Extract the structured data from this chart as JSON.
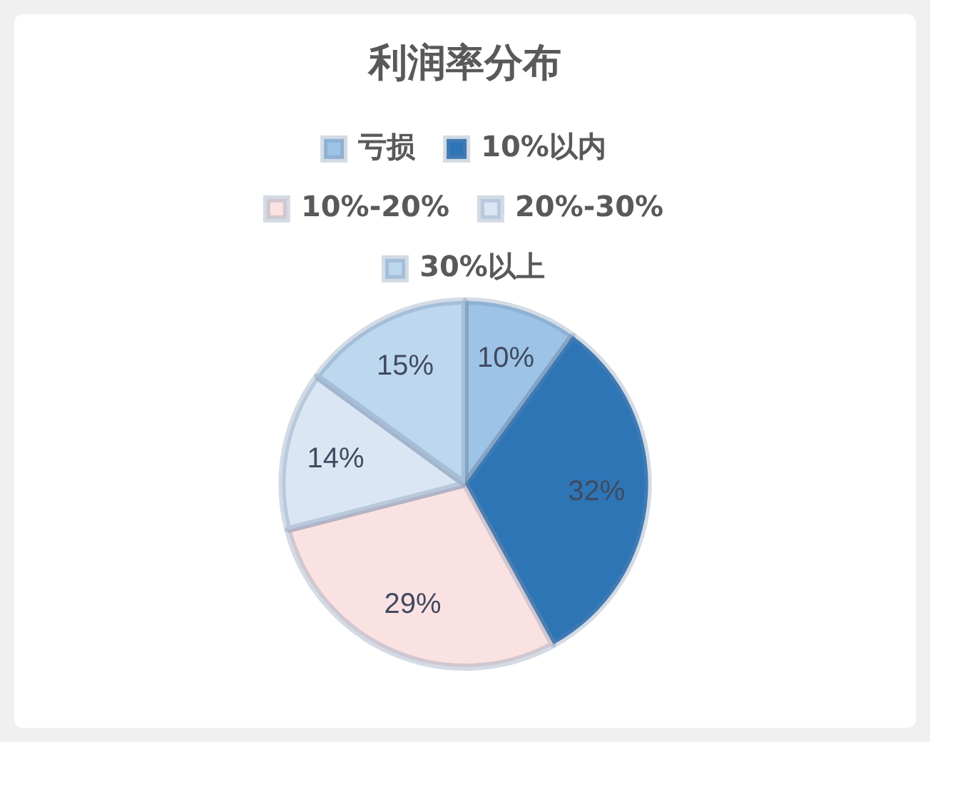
{
  "chart_data": {
    "type": "pie",
    "title": "利润率分布",
    "categories": [
      "亏损",
      "10%以内",
      "10%-20%",
      "20%-30%",
      "30%以上"
    ],
    "values": [
      10,
      32,
      29,
      14,
      15
    ],
    "colors": [
      "#9dc3e6",
      "#2e75b6",
      "#fbe2e2",
      "#dae6f4",
      "#bdd7ee"
    ],
    "value_labels": [
      "10%",
      "32%",
      "29%",
      "14%",
      "15%"
    ],
    "legend": "top"
  }
}
